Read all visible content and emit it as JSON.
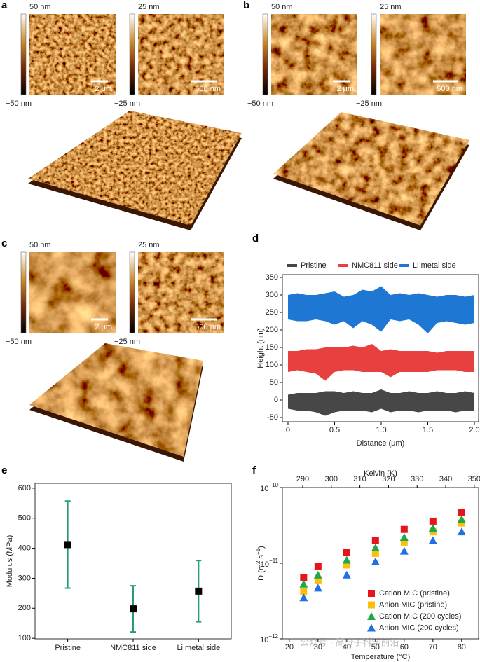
{
  "panels": [
    {
      "label": "a",
      "images": [
        {
          "max": "50 nm",
          "min": "−50 nm",
          "scale": "2 μm"
        },
        {
          "max": "25 nm",
          "min": "−25 nm",
          "scale": "500 nm"
        }
      ]
    },
    {
      "label": "b",
      "images": [
        {
          "max": "50 nm",
          "min": "−50 nm",
          "scale": "2 μm"
        },
        {
          "max": "25 nm",
          "min": "−25 nm",
          "scale": "500 nm"
        }
      ]
    },
    {
      "label": "c",
      "images": [
        {
          "max": "50 nm",
          "min": "−50 nm",
          "scale": "2 μm"
        },
        {
          "max": "25 nm",
          "min": "−25 nm",
          "scale": "500 nm"
        }
      ]
    }
  ],
  "chart_data": [
    {
      "panel_label": "d",
      "type": "band",
      "x": [
        0,
        0.1,
        0.2,
        0.3,
        0.4,
        0.5,
        0.6,
        0.7,
        0.8,
        0.9,
        1,
        1.1,
        1.2,
        1.3,
        1.4,
        1.5,
        1.6,
        1.7,
        1.8,
        1.9,
        2
      ],
      "series": [
        {
          "name": "Pristine",
          "color": "#474747",
          "upper": [
            15,
            20,
            20,
            20,
            25,
            25,
            20,
            25,
            20,
            20,
            30,
            20,
            20,
            25,
            20,
            20,
            25,
            20,
            20,
            25,
            20
          ],
          "lower": [
            -25,
            -30,
            -30,
            -35,
            -45,
            -35,
            -30,
            -30,
            -30,
            -35,
            -25,
            -35,
            -30,
            -30,
            -35,
            -30,
            -30,
            -30,
            -35,
            -30,
            -30
          ]
        },
        {
          "name": "NMC811 side",
          "color": "#e8403f",
          "upper": [
            140,
            140,
            145,
            145,
            150,
            150,
            150,
            155,
            150,
            160,
            140,
            145,
            140,
            140,
            140,
            140,
            135,
            140,
            140,
            140,
            140
          ],
          "lower": [
            80,
            85,
            80,
            75,
            55,
            80,
            85,
            85,
            80,
            80,
            80,
            65,
            80,
            80,
            80,
            80,
            85,
            85,
            85,
            80,
            80
          ]
        },
        {
          "name": "Li metal side",
          "color": "#1f77d4",
          "upper": [
            300,
            305,
            300,
            300,
            305,
            310,
            295,
            300,
            315,
            310,
            325,
            300,
            305,
            300,
            305,
            300,
            295,
            300,
            300,
            295,
            300
          ],
          "lower": [
            230,
            225,
            225,
            230,
            225,
            215,
            225,
            205,
            225,
            215,
            195,
            230,
            225,
            230,
            215,
            190,
            220,
            225,
            220,
            215,
            220
          ]
        }
      ],
      "xlabel": "Distance (μm)",
      "ylabel": "Height (nm)",
      "xlim": [
        -0.06,
        2.045
      ],
      "ylim": [
        -62,
        358
      ],
      "xticks": [
        0,
        0.5,
        {
          "value": 1,
          "label": "1.0"
        },
        1.5,
        {
          "value": 2,
          "label": "2.0"
        }
      ],
      "yticks": [
        -50,
        0,
        50,
        100,
        150,
        200,
        250,
        300,
        350
      ],
      "legend": "top"
    },
    {
      "panel_label": "e",
      "type": "errorbar",
      "categories": [
        "Pristine",
        "NMC811 side",
        "Li metal side"
      ],
      "values": [
        412,
        198,
        257
      ],
      "errors": [
        145,
        77,
        102
      ],
      "color": "#000000",
      "error_color": "#2a9a7a",
      "ylabel": "Modulus (MPa)",
      "ylim": [
        98,
        616
      ],
      "yticks": [
        100,
        200,
        300,
        400,
        500,
        600
      ]
    },
    {
      "panel_label": "f",
      "type": "scatter",
      "log_y": true,
      "x": [
        25,
        30,
        40,
        50,
        60,
        70,
        80
      ],
      "series": [
        {
          "name": "Cation MIC (pristine)",
          "color": "#e8141c",
          "marker": "square",
          "values": [
            6.5e-12,
            9e-12,
            1.4e-11,
            2e-11,
            2.8e-11,
            3.6e-11,
            4.7e-11
          ]
        },
        {
          "name": "Anion MIC (pristine)",
          "color": "#fbbf0c",
          "marker": "square",
          "values": [
            4.2e-12,
            6e-12,
            9.5e-12,
            1.35e-11,
            1.9e-11,
            2.6e-11,
            3.4e-11
          ]
        },
        {
          "name": "Cation MIC (200 cycles)",
          "color": "#1fa84a",
          "marker": "triangle",
          "values": [
            5.3e-12,
            7e-12,
            1.1e-11,
            1.6e-11,
            2.2e-11,
            2.9e-11,
            3.8e-11
          ]
        },
        {
          "name": "Anion MIC (200 cycles)",
          "color": "#1f6fe6",
          "marker": "triangle",
          "values": [
            3.5e-12,
            4.7e-12,
            7e-12,
            1.05e-11,
            1.45e-11,
            2e-11,
            2.6e-11
          ]
        }
      ],
      "xlabel": "Temperature (°C)",
      "x2label": "Kelvin (K)",
      "ylabel_parts": [
        "D (m",
        "2",
        " s",
        "−1",
        ")"
      ],
      "xlim": [
        17.6,
        85.9
      ],
      "x2lim": [
        282.9,
        351.5
      ],
      "xticks": [
        20,
        30,
        40,
        50,
        60,
        70,
        80
      ],
      "x2ticks": [
        290,
        300,
        310,
        320,
        330,
        340,
        350
      ],
      "ylim": [
        1e-12,
        1e-10
      ],
      "yticks": [
        {
          "value": 1e-12,
          "label": "10",
          "exponent": "−12"
        },
        {
          "value": 1e-11,
          "label": "10",
          "exponent": "−11"
        },
        {
          "value": 1e-10,
          "label": "10",
          "exponent": "−10"
        }
      ],
      "legend": "lower right",
      "watermark": "公众号 · 高分子科学前沿"
    }
  ]
}
